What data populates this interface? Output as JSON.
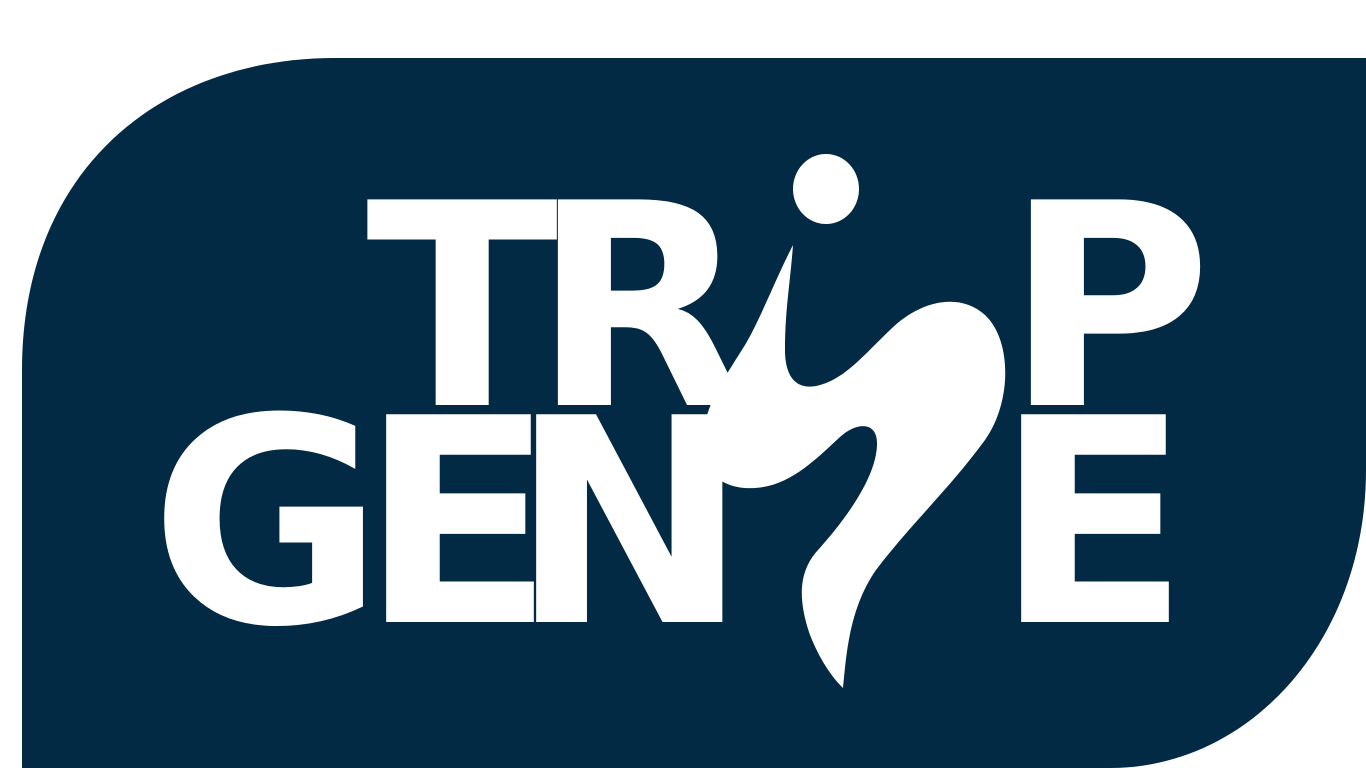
{
  "logo": {
    "brand_name": "TRIP GENIE",
    "line1": {
      "t": "T",
      "r": "R",
      "p": "P"
    },
    "line2": {
      "g": "G",
      "e": "E",
      "n": "N",
      "e2": "E"
    }
  },
  "colors": {
    "background": "#ffffff",
    "panel": "#032a45",
    "foreground": "#ffffff"
  },
  "icons": {
    "genie_swirl": "genie-swirl-icon",
    "genie_dot": "genie-dot-icon"
  }
}
